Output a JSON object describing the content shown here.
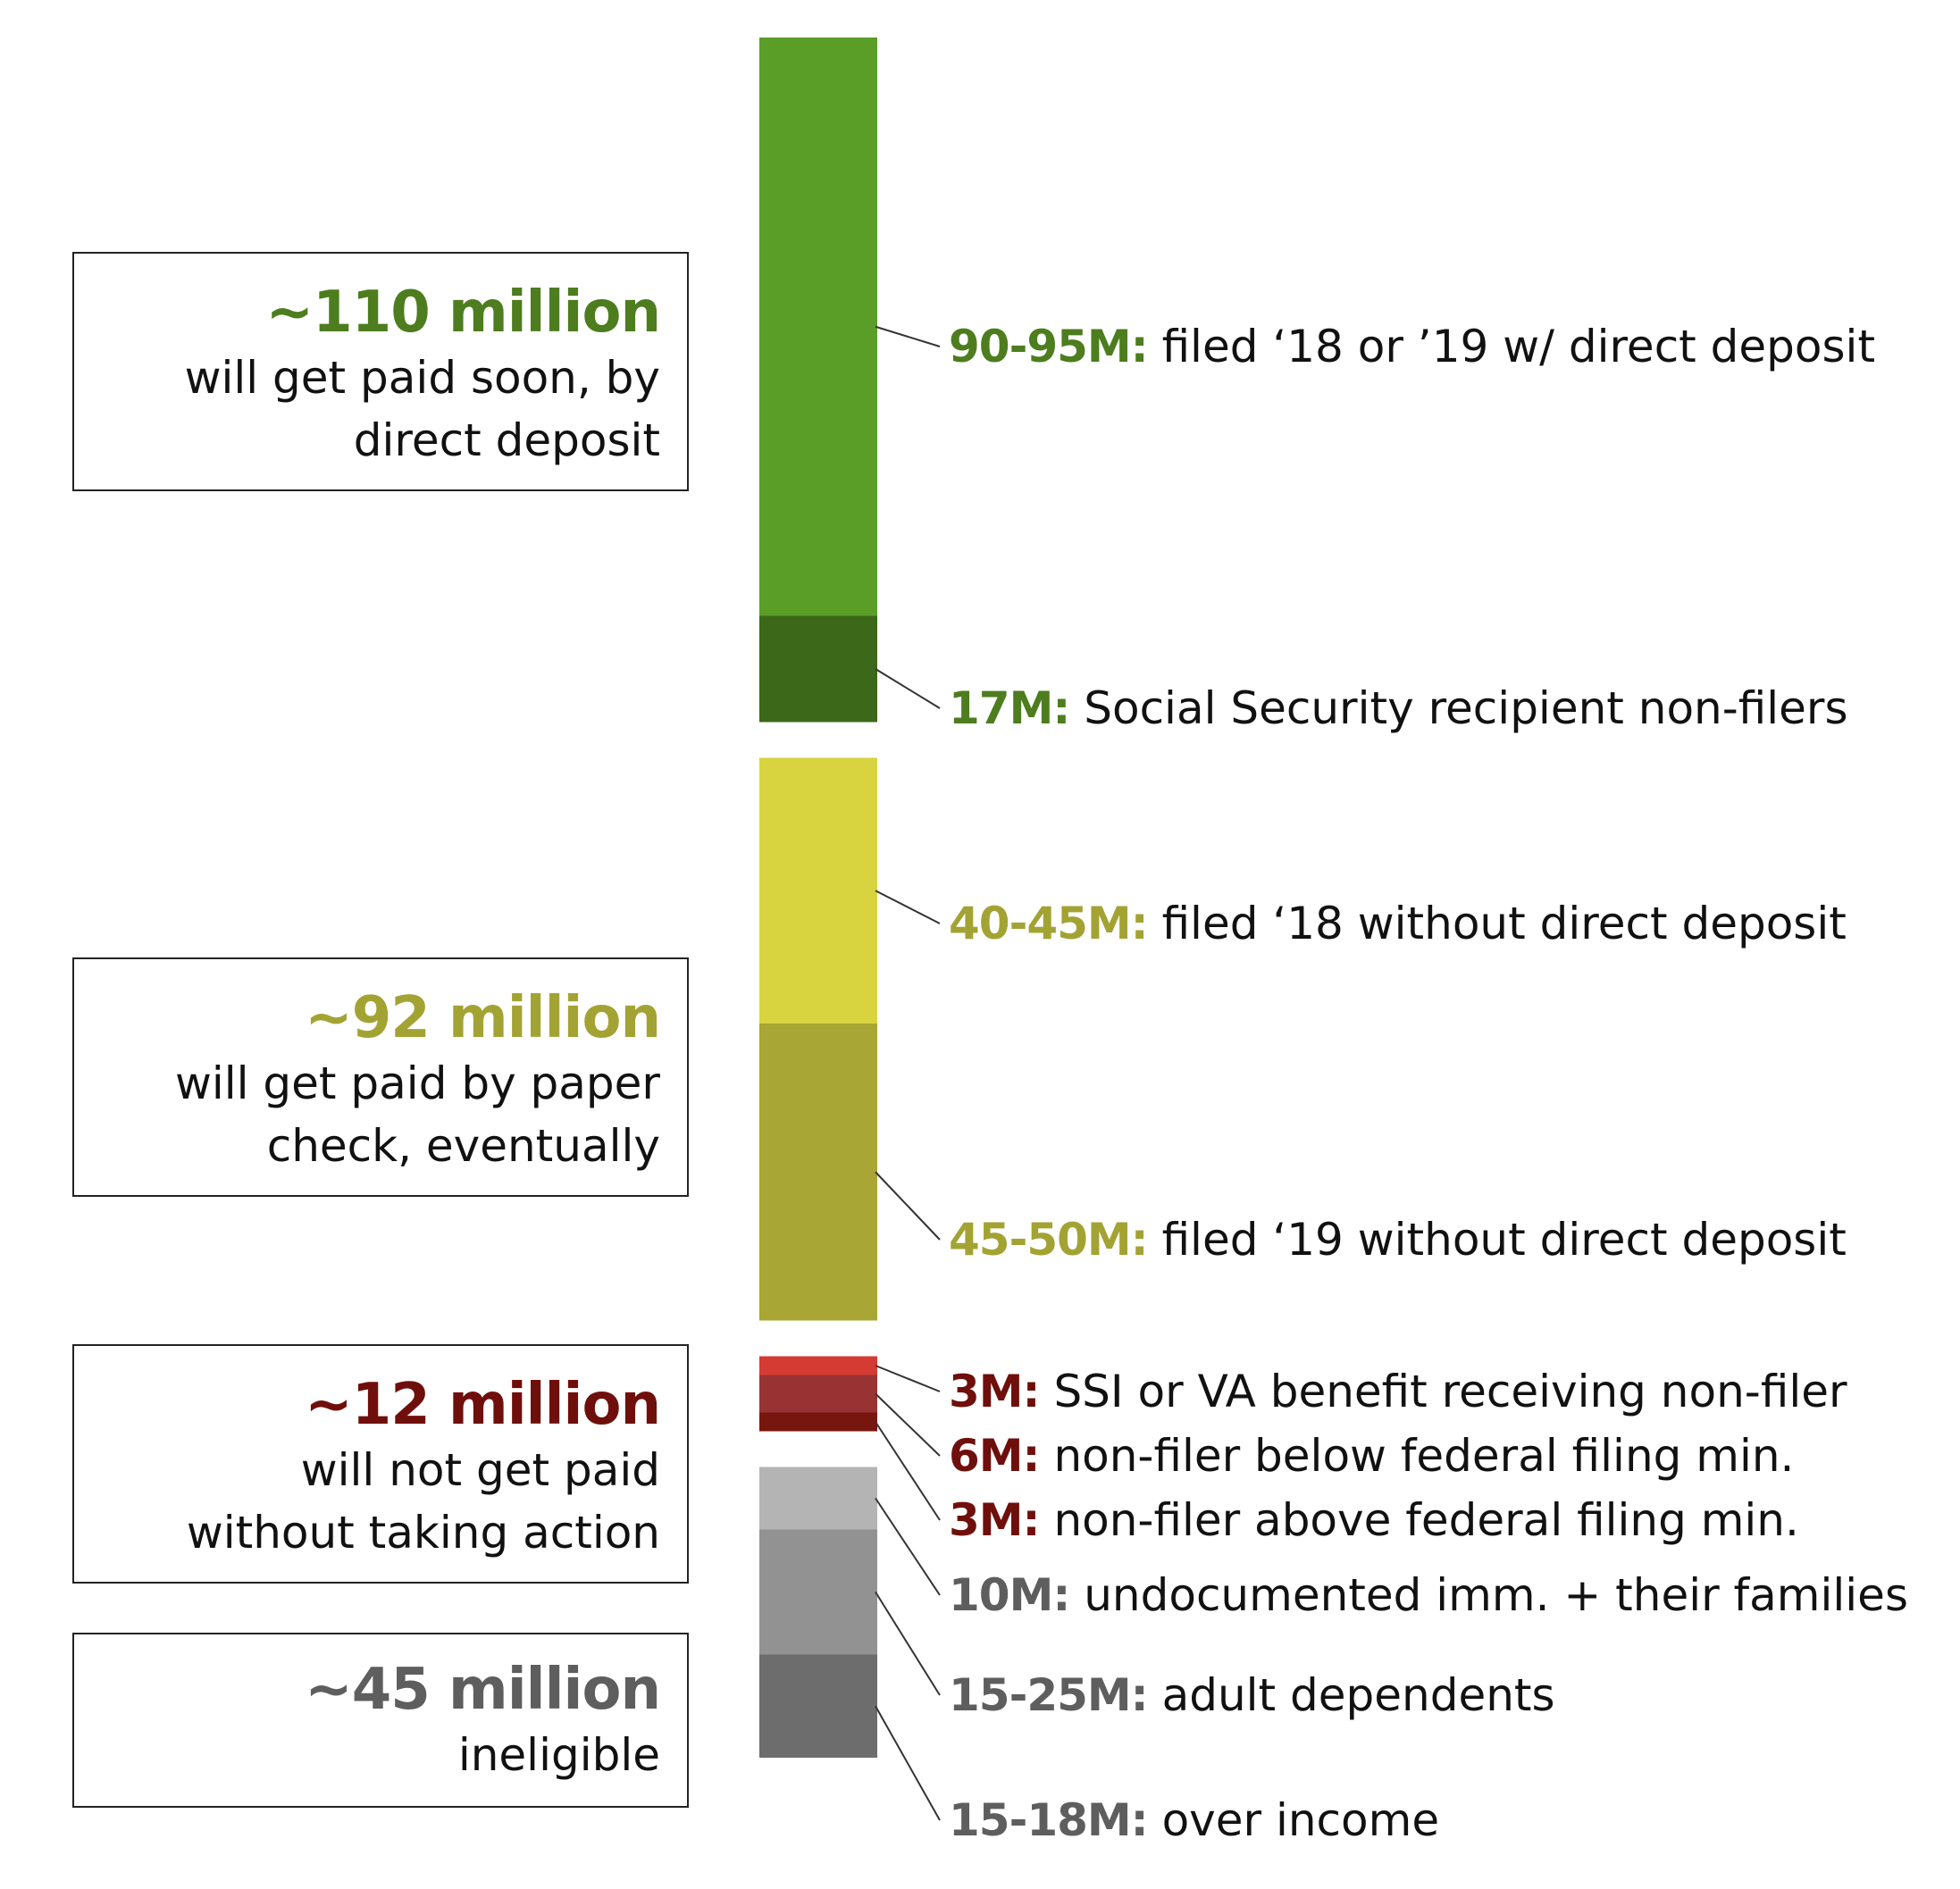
{
  "chart_data": {
    "type": "bar",
    "orientation": "vertical-stacked",
    "groups": [
      {
        "name": "direct_deposit",
        "value": "~110 million",
        "description": "will get paid soon, by direct deposit",
        "description_lines": [
          "will get paid soon, by",
          "direct deposit"
        ],
        "color": "#4d7d1e"
      },
      {
        "name": "paper_check",
        "value": "~92 million",
        "description": "will get paid by paper check, eventually",
        "description_lines": [
          "will get paid by paper",
          "check, eventually"
        ],
        "color": "#a3a334"
      },
      {
        "name": "no_action",
        "value": "~12 million",
        "description": "will not get paid without taking action",
        "description_lines": [
          "will not get paid",
          "without taking action"
        ],
        "color": "#6f0f0c"
      },
      {
        "name": "ineligible",
        "value": "~45 million",
        "description": "ineligible",
        "description_lines": [
          "ineligible"
        ],
        "color": "#5e5e5e"
      }
    ],
    "segments": [
      {
        "group": 0,
        "amount": "90-95M:",
        "text": "filed ‘18 or ’19 w/ direct deposit",
        "value_millions": 92.5,
        "color": "#5a9e28",
        "label_color": "#4d7d1e"
      },
      {
        "group": 0,
        "amount": "17M:",
        "text": "Social Security recipient non-filers",
        "value_millions": 17,
        "color": "#3b6819",
        "label_color": "#4d7d1e"
      },
      {
        "group": 1,
        "amount": "40-45M:",
        "text": "filed ‘18 without direct deposit",
        "value_millions": 42.5,
        "color": "#d8d43f",
        "label_color": "#a3a334"
      },
      {
        "group": 1,
        "amount": "45-50M:",
        "text": "filed ‘19 without direct deposit",
        "value_millions": 47.5,
        "color": "#a8a634",
        "label_color": "#a3a334"
      },
      {
        "group": 2,
        "amount": "3M:",
        "text": "SSI or VA benefit receiving non-filer",
        "value_millions": 3,
        "color": "#d63b33",
        "label_color": "#6f0f0c"
      },
      {
        "group": 2,
        "amount": "6M:",
        "text": "non-filer below federal filing min.",
        "value_millions": 6,
        "color": "#993333",
        "label_color": "#6f0f0c"
      },
      {
        "group": 2,
        "amount": "3M:",
        "text": "non-filer above federal filing min.",
        "value_millions": 3,
        "color": "#77150f",
        "label_color": "#6f0f0c"
      },
      {
        "group": 3,
        "amount": "10M:",
        "text": "undocumented imm. + their families",
        "value_millions": 10,
        "color": "#b4b4b4",
        "label_color": "#5e5e5e"
      },
      {
        "group": 3,
        "amount": "15-25M:",
        "text": "adult dependents",
        "value_millions": 20,
        "color": "#929292",
        "label_color": "#5e5e5e"
      },
      {
        "group": 3,
        "amount": "15-18M:",
        "text": "over income",
        "value_millions": 16.5,
        "color": "#6d6d6d",
        "label_color": "#5e5e5e"
      }
    ]
  }
}
